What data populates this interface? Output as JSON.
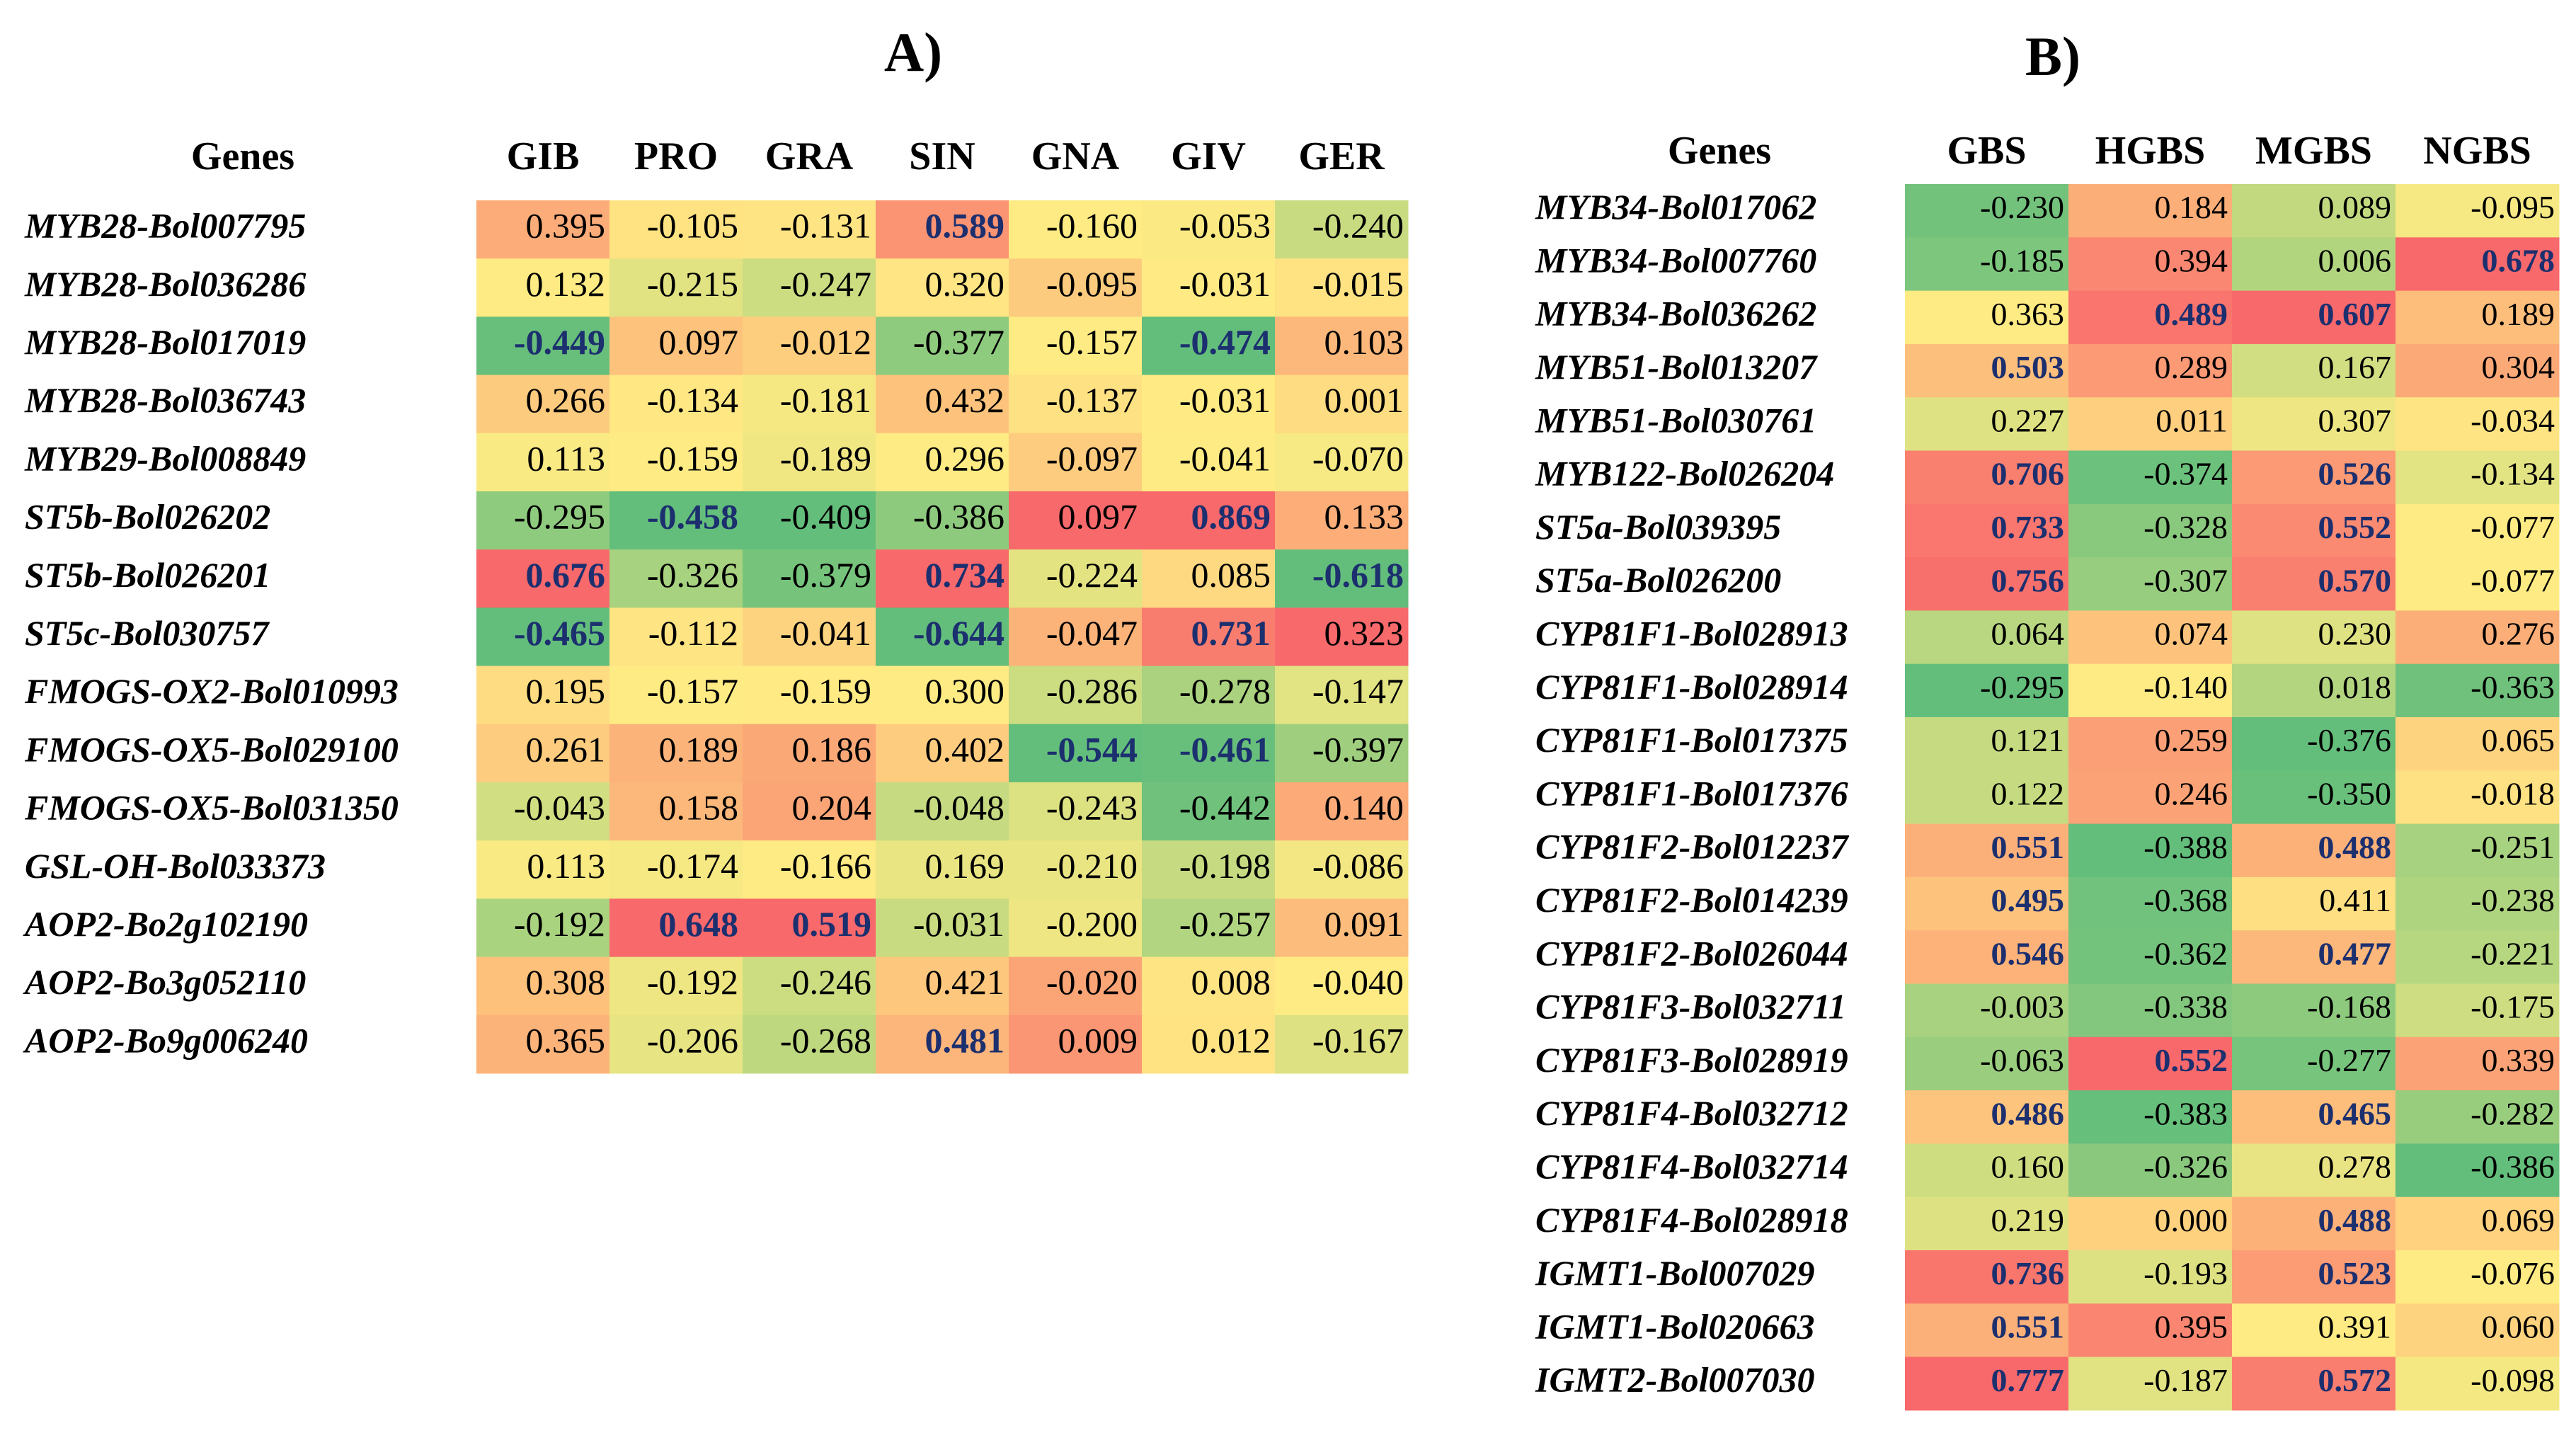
{
  "panels": [
    {
      "label": "A)",
      "gene_header": "Genes",
      "columns": [
        "GIB",
        "PRO",
        "GRA",
        "SIN",
        "GNA",
        "GIV",
        "GER"
      ],
      "rows": [
        {
          "gene": "MYB28-Bol007795",
          "values": [
            "0.395",
            "-0.105",
            "-0.131",
            "0.589",
            "-0.160",
            "-0.053",
            "-0.240"
          ],
          "bold": [
            3
          ]
        },
        {
          "gene": "MYB28-Bol036286",
          "values": [
            "0.132",
            "-0.215",
            "-0.247",
            "0.320",
            "-0.095",
            "-0.031",
            "-0.015"
          ],
          "bold": []
        },
        {
          "gene": "MYB28-Bol017019",
          "values": [
            "-0.449",
            "0.097",
            "-0.012",
            "-0.377",
            "-0.157",
            "-0.474",
            "0.103"
          ],
          "bold": [
            0,
            5
          ]
        },
        {
          "gene": "MYB28-Bol036743",
          "values": [
            "0.266",
            "-0.134",
            "-0.181",
            "0.432",
            "-0.137",
            "-0.031",
            "0.001"
          ],
          "bold": []
        },
        {
          "gene": "MYB29-Bol008849",
          "values": [
            "0.113",
            "-0.159",
            "-0.189",
            "0.296",
            "-0.097",
            "-0.041",
            "-0.070"
          ],
          "bold": []
        },
        {
          "gene": "ST5b-Bol026202",
          "values": [
            "-0.295",
            "-0.458",
            "-0.409",
            "-0.386",
            "0.097",
            "0.869",
            "0.133"
          ],
          "bold": [
            1,
            5
          ]
        },
        {
          "gene": "ST5b-Bol026201",
          "values": [
            "0.676",
            "-0.326",
            "-0.379",
            "0.734",
            "-0.224",
            "0.085",
            "-0.618"
          ],
          "bold": [
            0,
            3,
            6
          ]
        },
        {
          "gene": "ST5c-Bol030757",
          "values": [
            "-0.465",
            "-0.112",
            "-0.041",
            "-0.644",
            "-0.047",
            "0.731",
            "0.323"
          ],
          "bold": [
            0,
            3,
            5
          ]
        },
        {
          "gene": "FMOGS-OX2-Bol010993",
          "values": [
            "0.195",
            "-0.157",
            "-0.159",
            "0.300",
            "-0.286",
            "-0.278",
            "-0.147"
          ],
          "bold": []
        },
        {
          "gene": "FMOGS-OX5-Bol029100",
          "values": [
            "0.261",
            "0.189",
            "0.186",
            "0.402",
            "-0.544",
            "-0.461",
            "-0.397"
          ],
          "bold": [
            4,
            5
          ]
        },
        {
          "gene": "FMOGS-OX5-Bol031350",
          "values": [
            "-0.043",
            "0.158",
            "0.204",
            "-0.048",
            "-0.243",
            "-0.442",
            "0.140"
          ],
          "bold": []
        },
        {
          "gene": "GSL-OH-Bol033373",
          "values": [
            "0.113",
            "-0.174",
            "-0.166",
            "0.169",
            "-0.210",
            "-0.198",
            "-0.086"
          ],
          "bold": []
        },
        {
          "gene": "AOP2-Bo2g102190",
          "values": [
            "-0.192",
            "0.648",
            "0.519",
            "-0.031",
            "-0.200",
            "-0.257",
            "0.091"
          ],
          "bold": [
            1,
            2
          ]
        },
        {
          "gene": "AOP2-Bo3g052110",
          "values": [
            "0.308",
            "-0.192",
            "-0.246",
            "0.421",
            "-0.020",
            "0.008",
            "-0.040"
          ],
          "bold": []
        },
        {
          "gene": "AOP2-Bo9g006240",
          "values": [
            "0.365",
            "-0.206",
            "-0.268",
            "0.481",
            "0.009",
            "0.012",
            "-0.167"
          ],
          "bold": [
            3
          ]
        }
      ]
    },
    {
      "label": "B)",
      "gene_header": "Genes",
      "columns": [
        "GBS",
        "HGBS",
        "MGBS",
        "NGBS"
      ],
      "rows": [
        {
          "gene": "MYB34-Bol017062",
          "values": [
            "-0.230",
            "0.184",
            "0.089",
            "-0.095"
          ],
          "bold": []
        },
        {
          "gene": "MYB34-Bol007760",
          "values": [
            "-0.185",
            "0.394",
            "0.006",
            "0.678"
          ],
          "bold": [
            3
          ]
        },
        {
          "gene": "MYB34-Bol036262",
          "values": [
            "0.363",
            "0.489",
            "0.607",
            "0.189"
          ],
          "bold": [
            1,
            2
          ]
        },
        {
          "gene": "MYB51-Bol013207",
          "values": [
            "0.503",
            "0.289",
            "0.167",
            "0.304"
          ],
          "bold": [
            0
          ]
        },
        {
          "gene": "MYB51-Bol030761",
          "values": [
            "0.227",
            "0.011",
            "0.307",
            "-0.034"
          ],
          "bold": []
        },
        {
          "gene": "MYB122-Bol026204",
          "values": [
            "0.706",
            "-0.374",
            "0.526",
            "-0.134"
          ],
          "bold": [
            0,
            2
          ]
        },
        {
          "gene": "ST5a-Bol039395",
          "values": [
            "0.733",
            "-0.328",
            "0.552",
            "-0.077"
          ],
          "bold": [
            0,
            2
          ]
        },
        {
          "gene": "ST5a-Bol026200",
          "values": [
            "0.756",
            "-0.307",
            "0.570",
            "-0.077"
          ],
          "bold": [
            0,
            2
          ]
        },
        {
          "gene": "CYP81F1-Bol028913",
          "values": [
            "0.064",
            "0.074",
            "0.230",
            "0.276"
          ],
          "bold": []
        },
        {
          "gene": "CYP81F1-Bol028914",
          "values": [
            "-0.295",
            "-0.140",
            "0.018",
            "-0.363"
          ],
          "bold": []
        },
        {
          "gene": "CYP81F1-Bol017375",
          "values": [
            "0.121",
            "0.259",
            "-0.376",
            "0.065"
          ],
          "bold": []
        },
        {
          "gene": "CYP81F1-Bol017376",
          "values": [
            "0.122",
            "0.246",
            "-0.350",
            "-0.018"
          ],
          "bold": []
        },
        {
          "gene": "CYP81F2-Bol012237",
          "values": [
            "0.551",
            "-0.388",
            "0.488",
            "-0.251"
          ],
          "bold": [
            0,
            2
          ]
        },
        {
          "gene": "CYP81F2-Bol014239",
          "values": [
            "0.495",
            "-0.368",
            "0.411",
            "-0.238"
          ],
          "bold": [
            0
          ]
        },
        {
          "gene": "CYP81F2-Bol026044",
          "values": [
            "0.546",
            "-0.362",
            "0.477",
            "-0.221"
          ],
          "bold": [
            0,
            2
          ]
        },
        {
          "gene": "CYP81F3-Bol032711",
          "values": [
            "-0.003",
            "-0.338",
            "-0.168",
            "-0.175"
          ],
          "bold": []
        },
        {
          "gene": "CYP81F3-Bol028919",
          "values": [
            "-0.063",
            "0.552",
            "-0.277",
            "0.339"
          ],
          "bold": [
            1
          ]
        },
        {
          "gene": "CYP81F4-Bol032712",
          "values": [
            "0.486",
            "-0.383",
            "0.465",
            "-0.282"
          ],
          "bold": [
            0,
            2
          ]
        },
        {
          "gene": "CYP81F4-Bol032714",
          "values": [
            "0.160",
            "-0.326",
            "0.278",
            "-0.386"
          ],
          "bold": []
        },
        {
          "gene": "CYP81F4-Bol028918",
          "values": [
            "0.219",
            "0.000",
            "0.488",
            "0.069"
          ],
          "bold": [
            2
          ]
        },
        {
          "gene": "IGMT1-Bol007029",
          "values": [
            "0.736",
            "-0.193",
            "0.523",
            "-0.076"
          ],
          "bold": [
            0,
            2
          ]
        },
        {
          "gene": "IGMT1-Bol020663",
          "values": [
            "0.551",
            "0.395",
            "0.391",
            "0.060"
          ],
          "bold": [
            0
          ]
        },
        {
          "gene": "IGMT2-Bol007030",
          "values": [
            "0.777",
            "-0.187",
            "0.572",
            "-0.098"
          ],
          "bold": [
            0,
            2
          ]
        }
      ]
    }
  ]
}
